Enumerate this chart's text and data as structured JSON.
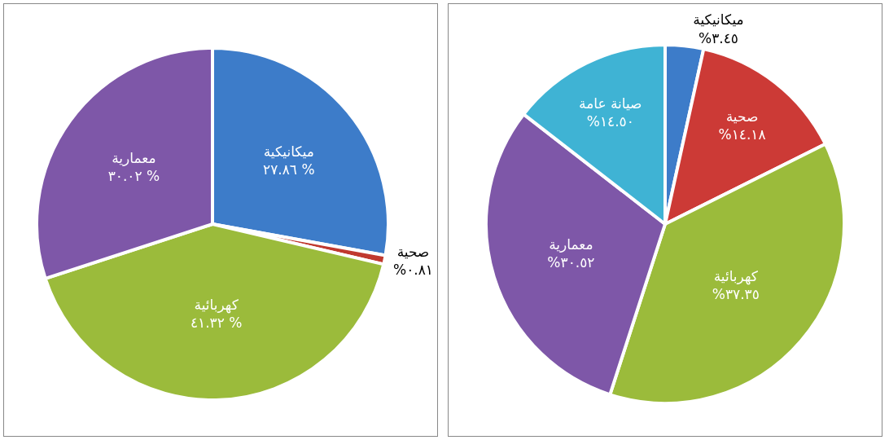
{
  "chart_data": [
    {
      "type": "pie",
      "categories": [
        "ميكانيكية",
        "صحية",
        "كهربائية",
        "معمارية"
      ],
      "values": [
        27.86,
        0.81,
        41.32,
        30.02
      ],
      "colors": [
        "#3d7cc9",
        "#c0392f",
        "#9bbb3b",
        "#7e57a8"
      ],
      "value_labels": [
        "٢٧.٨٦ %",
        "%٠.٨١",
        "٤١.٣٢ %",
        "٣٠.٠٢ %"
      ]
    },
    {
      "type": "pie",
      "categories": [
        "ميكانيكية",
        "صحية",
        "كهربائية",
        "معمارية",
        "صيانة عامة"
      ],
      "values": [
        3.45,
        14.18,
        37.35,
        30.52,
        14.5
      ],
      "colors": [
        "#3d7cc9",
        "#cc3a36",
        "#9bbb3b",
        "#7e57a8",
        "#3fb3d4"
      ],
      "value_labels": [
        "%٣.٤٥",
        "%١٤.١٨",
        "%٣٧.٣٥",
        "%٣٠.٥٢",
        "%١٤.٥٠"
      ]
    }
  ]
}
